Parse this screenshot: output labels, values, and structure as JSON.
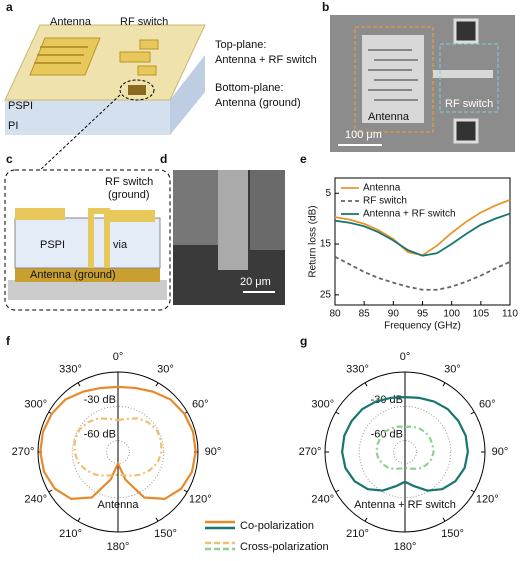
{
  "panels": {
    "a": {
      "label": "a",
      "antenna": "Antenna",
      "rf_switch": "RF switch",
      "top_plane": "Top-plane:",
      "top_plane_desc": "Antenna + RF switch",
      "bottom_plane": "Bottom-plane:",
      "bottom_plane_desc": "Antenna (ground)",
      "pspi": "PSPI",
      "pi": "PI"
    },
    "b": {
      "label": "b",
      "antenna": "Antenna",
      "rf_switch": "RF switch",
      "scale": "100 μm"
    },
    "c": {
      "label": "c",
      "rf_switch": "RF switch",
      "ground": "(ground)",
      "pspi": "PSPI",
      "via": "via",
      "antenna_ground": "Antenna (ground)"
    },
    "d": {
      "label": "d",
      "scale": "20 μm"
    },
    "e": {
      "label": "e"
    },
    "f": {
      "label": "f",
      "note": "Antenna"
    },
    "g": {
      "label": "g",
      "note": "Antenna + RF switch"
    },
    "legend": {
      "co": "Co-polarization",
      "cross": "Cross-polarization"
    }
  },
  "chart_data": [
    {
      "type": "line",
      "xlabel": "Frequency (GHz)",
      "ylabel": "Return loss (dB)",
      "x": [
        80,
        82.5,
        85,
        87.5,
        90,
        92.5,
        95,
        97.5,
        100,
        102.5,
        105,
        107.5,
        110
      ],
      "xlim": [
        80,
        110
      ],
      "xticks": [
        80,
        85,
        90,
        95,
        100,
        105,
        110
      ],
      "ylim": [
        2,
        27
      ],
      "y_inverted": true,
      "yticks": [
        5,
        15,
        25
      ],
      "series": [
        {
          "name": "Antenna",
          "color": "#e8962e",
          "dash": false,
          "values": [
            9.7,
            10.2,
            11,
            12.3,
            14,
            16.6,
            17.2,
            15.3,
            12.8,
            10.6,
            8.8,
            7.4,
            6.3
          ]
        },
        {
          "name": "RF switch",
          "color": "#666666",
          "dash": true,
          "values": [
            17.5,
            19,
            20.5,
            21.7,
            22.6,
            23.4,
            24,
            24,
            23.4,
            22.4,
            21.2,
            19.8,
            18.5
          ]
        },
        {
          "name": "Antenna + RF switch",
          "color": "#17766f",
          "dash": false,
          "values": [
            10.4,
            10.8,
            11.5,
            12.7,
            14.3,
            16.2,
            17.3,
            16.8,
            15,
            13,
            11.2,
            10,
            9
          ]
        }
      ]
    },
    {
      "type": "polar",
      "theta": [
        0,
        15,
        30,
        45,
        60,
        75,
        90,
        105,
        120,
        135,
        150,
        165,
        180,
        195,
        210,
        225,
        240,
        255,
        270,
        285,
        300,
        315,
        330,
        345
      ],
      "thetaticks": [
        {
          "value": 0,
          "label": "0°"
        },
        {
          "value": 30,
          "label": "30°"
        },
        {
          "value": 60,
          "label": "60°"
        },
        {
          "value": 90,
          "label": "90°"
        },
        {
          "value": 120,
          "label": "120°"
        },
        {
          "value": 150,
          "label": "150°"
        },
        {
          "value": 180,
          "label": "180°"
        },
        {
          "value": 210,
          "label": "210°"
        },
        {
          "value": 240,
          "label": "240°"
        },
        {
          "value": 270,
          "label": "270°"
        },
        {
          "value": 300,
          "label": "300°"
        },
        {
          "value": 330,
          "label": "330°"
        }
      ],
      "rlim": [
        -70,
        0
      ],
      "rticks": [
        {
          "value": -30,
          "label": "-30 dB"
        },
        {
          "value": -60,
          "label": "-60 dB"
        }
      ],
      "series": [
        {
          "color": "#e8892b",
          "dash": false,
          "values": [
            -13,
            -12,
            -9,
            -5,
            -3,
            -2,
            -2,
            -3,
            -6,
            -12,
            -24,
            -45,
            -60,
            -45,
            -24,
            -12,
            -6,
            -3,
            -2,
            -2,
            -3,
            -5,
            -9,
            -12
          ]
        },
        {
          "color": "#f0c070",
          "dash": true,
          "values": [
            -42,
            -40,
            -36,
            -33,
            -31,
            -31,
            -32,
            -34,
            -38,
            -42,
            -46,
            -49,
            -50,
            -49,
            -46,
            -42,
            -38,
            -34,
            -32,
            -31,
            -31,
            -33,
            -36,
            -40
          ]
        }
      ]
    },
    {
      "type": "polar",
      "theta": [
        0,
        15,
        30,
        45,
        60,
        75,
        90,
        105,
        120,
        135,
        150,
        165,
        180,
        195,
        210,
        225,
        240,
        255,
        270,
        285,
        300,
        315,
        330,
        345
      ],
      "thetaticks": [
        {
          "value": 0,
          "label": "0°"
        },
        {
          "value": 30,
          "label": "30°"
        },
        {
          "value": 60,
          "label": "60°"
        },
        {
          "value": 90,
          "label": "90°"
        },
        {
          "value": 120,
          "label": "120°"
        },
        {
          "value": 150,
          "label": "150°"
        },
        {
          "value": 180,
          "label": "180°"
        },
        {
          "value": 210,
          "label": "210°"
        },
        {
          "value": 240,
          "label": "240°"
        },
        {
          "value": 270,
          "label": "270°"
        },
        {
          "value": 300,
          "label": "300°"
        },
        {
          "value": 330,
          "label": "330°"
        }
      ],
      "rlim": [
        -70,
        0
      ],
      "rticks": [
        {
          "value": -30,
          "label": "-30 dB"
        },
        {
          "value": -60,
          "label": "-60 dB"
        }
      ],
      "series": [
        {
          "color": "#17766f",
          "dash": false,
          "values": [
            -22,
            -21,
            -19,
            -17,
            -16,
            -15,
            -15,
            -16,
            -19,
            -24,
            -31,
            -39,
            -44,
            -39,
            -31,
            -24,
            -19,
            -16,
            -15,
            -15,
            -16,
            -17,
            -19,
            -21
          ]
        },
        {
          "color": "#8fd18f",
          "dash": true,
          "values": [
            -48,
            -47,
            -46,
            -45,
            -45,
            -45,
            -45,
            -46,
            -48,
            -50,
            -53,
            -55,
            -56,
            -55,
            -53,
            -50,
            -48,
            -46,
            -45,
            -45,
            -45,
            -45,
            -46,
            -47
          ]
        }
      ]
    }
  ]
}
